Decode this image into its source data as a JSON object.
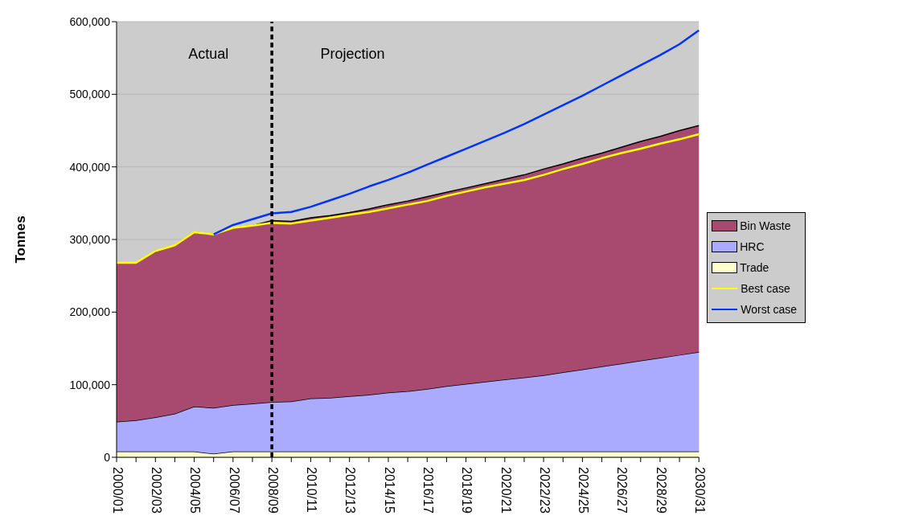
{
  "chart_data": {
    "type": "area",
    "stacked": true,
    "ylabel": "Tonnes",
    "categories": [
      "2000/01",
      null,
      "2002/03",
      null,
      "2004/05",
      null,
      "2006/07",
      null,
      "2008/09",
      null,
      "2010/11",
      null,
      "2012/13",
      null,
      "2014/15",
      null,
      "2016/17",
      null,
      "2018/19",
      null,
      "2020/21",
      null,
      "2022/23",
      null,
      "2024/25",
      null,
      "2026/27",
      null,
      "2028/29",
      null,
      "2030/31"
    ],
    "series": [
      {
        "name": "Trade",
        "color": "#ffffcc",
        "values": [
          8000,
          8000,
          8000,
          8000,
          8000,
          5000,
          8000,
          8000,
          8000,
          8000,
          8000,
          8000,
          8000,
          8000,
          8000,
          8000,
          8000,
          8000,
          8000,
          8000,
          8000,
          8000,
          8000,
          8000,
          8000,
          8000,
          8000,
          8000,
          8000,
          8000,
          8000
        ]
      },
      {
        "name": "HRC",
        "color": "#aaaaff",
        "values": [
          41000,
          43000,
          47000,
          52000,
          62000,
          63000,
          64000,
          66000,
          68000,
          69000,
          73000,
          74000,
          76000,
          78000,
          81000,
          83000,
          86000,
          90000,
          93000,
          96000,
          99000,
          102000,
          105000,
          109000,
          113000,
          117000,
          121000,
          125000,
          129000,
          133000,
          137000
        ]
      },
      {
        "name": "Bin Waste",
        "color": "#a8496f",
        "values": [
          219000,
          217000,
          228000,
          232000,
          240000,
          239000,
          244000,
          245000,
          250000,
          248000,
          249000,
          251000,
          253000,
          256000,
          259000,
          262000,
          265000,
          267000,
          270000,
          273000,
          276000,
          279000,
          284000,
          287000,
          291000,
          294000,
          298000,
          302000,
          305000,
          309000,
          312000
        ]
      },
      {
        "name": "Best case",
        "type": "line",
        "color": "#ffff00",
        "values": [
          268000,
          268000,
          284000,
          292000,
          310000,
          307000,
          316000,
          319000,
          323000,
          322000,
          326000,
          330000,
          334000,
          338000,
          343000,
          348000,
          353000,
          360000,
          366000,
          372000,
          377000,
          382000,
          389000,
          397000,
          404000,
          412000,
          419000,
          425000,
          432000,
          438000,
          445000
        ]
      },
      {
        "name": "Worst case",
        "type": "line",
        "color": "#0033ff",
        "values": [
          null,
          null,
          null,
          null,
          null,
          307000,
          320000,
          328000,
          336000,
          338000,
          345000,
          354000,
          363000,
          373000,
          382000,
          392000,
          403000,
          414000,
          425000,
          436000,
          447000,
          459000,
          472000,
          485000,
          498000,
          512000,
          526000,
          540000,
          554000,
          569000,
          588000
        ]
      }
    ],
    "ylim": [
      0,
      600000
    ],
    "yticks": [
      0,
      {
        "value": 100000,
        "label": "100,000"
      },
      {
        "value": 200000,
        "label": "200,000"
      },
      {
        "value": 300000,
        "label": "300,000"
      },
      {
        "value": 400000,
        "label": "400,000"
      },
      {
        "value": 500000,
        "label": "500,000"
      },
      {
        "value": 600000,
        "label": "600,000"
      }
    ],
    "grid": "y",
    "legend": "right",
    "ref_lines": [
      {
        "axis": "x",
        "value": "2008/09",
        "color": "#000000",
        "line_style": "dashed"
      }
    ],
    "annotations": [
      "Actual",
      "Projection"
    ]
  }
}
